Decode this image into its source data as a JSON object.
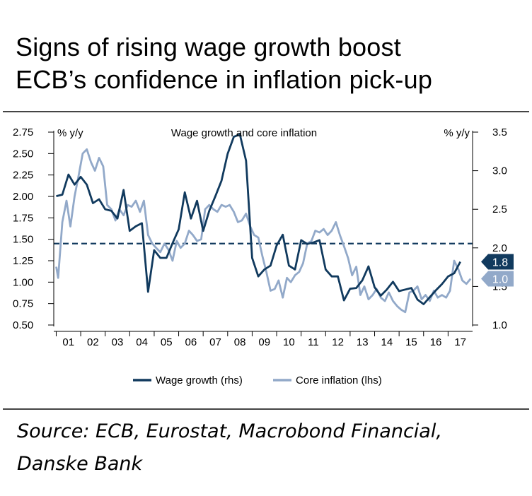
{
  "title_lines": [
    "Signs of rising wage growth boost",
    "ECB’s confidence in inflation pick-up"
  ],
  "source_lines": [
    "Source: ECB, Eurostat, Macrobond Financial,",
    "Danske Bank"
  ],
  "colors": {
    "wage": "#113a5e",
    "core": "#92a9c9",
    "dashed": "#113a5e",
    "axis": "#000000"
  },
  "chart_data": {
    "type": "line",
    "title": "Wage growth and core inflation",
    "left_unit": "% y/y",
    "right_unit": "% y/y",
    "left_axis": {
      "ylim": [
        0.5,
        2.75
      ],
      "ticks": [
        "0.50",
        "0.75",
        "1.00",
        "1.25",
        "1.50",
        "1.75",
        "2.00",
        "2.25",
        "2.50",
        "2.75"
      ]
    },
    "right_axis": {
      "ylim": [
        1.0,
        3.5
      ],
      "ticks": [
        "1.0",
        "1.5",
        "2.0",
        "2.5",
        "3.0",
        "3.5"
      ]
    },
    "x_labels": [
      "01",
      "02",
      "03",
      "04",
      "05",
      "06",
      "07",
      "08",
      "09",
      "10",
      "11",
      "12",
      "13",
      "14",
      "15",
      "16",
      "17"
    ],
    "xlim": [
      2000.9,
      2018.0
    ],
    "reference_line": {
      "axis": "left",
      "value": 1.45,
      "style": "dashed"
    },
    "legend": [
      "Wage growth (rhs)",
      "Core inflation (lhs)"
    ],
    "end_labels": {
      "wage": "1.8",
      "core": "1.0"
    },
    "series": [
      {
        "name": "Wage growth (rhs)",
        "axis": "right",
        "x": [
          2001.0,
          2001.25,
          2001.5,
          2001.75,
          2002.0,
          2002.25,
          2002.5,
          2002.75,
          2003.0,
          2003.25,
          2003.5,
          2003.75,
          2004.0,
          2004.25,
          2004.5,
          2004.75,
          2005.0,
          2005.25,
          2005.5,
          2005.75,
          2006.0,
          2006.25,
          2006.5,
          2006.75,
          2007.0,
          2007.25,
          2007.5,
          2007.75,
          2008.0,
          2008.25,
          2008.5,
          2008.75,
          2009.0,
          2009.25,
          2009.5,
          2009.75,
          2010.0,
          2010.25,
          2010.5,
          2010.75,
          2011.0,
          2011.25,
          2011.5,
          2011.75,
          2012.0,
          2012.25,
          2012.5,
          2012.75,
          2013.0,
          2013.25,
          2013.5,
          2013.75,
          2014.0,
          2014.25,
          2014.5,
          2014.75,
          2015.0,
          2015.25,
          2015.5,
          2015.75,
          2016.0,
          2016.25,
          2016.5,
          2016.75,
          2017.0,
          2017.25,
          2017.5
        ],
        "values": [
          2.67,
          2.69,
          2.95,
          2.82,
          2.92,
          2.82,
          2.58,
          2.63,
          2.5,
          2.48,
          2.38,
          2.75,
          2.22,
          2.28,
          2.32,
          1.43,
          1.97,
          1.87,
          1.87,
          2.06,
          2.24,
          2.72,
          2.38,
          2.61,
          2.22,
          2.48,
          2.67,
          2.87,
          3.22,
          3.44,
          3.47,
          3.13,
          1.87,
          1.63,
          1.72,
          1.77,
          2.03,
          2.17,
          1.77,
          1.72,
          2.1,
          2.05,
          2.07,
          2.1,
          1.72,
          1.63,
          1.63,
          1.32,
          1.47,
          1.48,
          1.58,
          1.76,
          1.49,
          1.38,
          1.46,
          1.56,
          1.44,
          1.46,
          1.48,
          1.33,
          1.27,
          1.36,
          1.45,
          1.53,
          1.63,
          1.67,
          1.82
        ]
      },
      {
        "name": "Core inflation (lhs)",
        "axis": "left",
        "x": [
          2001.0,
          2001.08,
          2001.25,
          2001.42,
          2001.58,
          2001.75,
          2001.92,
          2002.08,
          2002.25,
          2002.42,
          2002.58,
          2002.75,
          2002.92,
          2003.08,
          2003.25,
          2003.42,
          2003.58,
          2003.75,
          2003.92,
          2004.08,
          2004.25,
          2004.42,
          2004.58,
          2004.75,
          2004.92,
          2005.08,
          2005.25,
          2005.42,
          2005.58,
          2005.75,
          2005.92,
          2006.08,
          2006.25,
          2006.42,
          2006.58,
          2006.75,
          2006.92,
          2007.08,
          2007.25,
          2007.42,
          2007.58,
          2007.75,
          2007.92,
          2008.08,
          2008.25,
          2008.42,
          2008.58,
          2008.75,
          2008.92,
          2009.08,
          2009.25,
          2009.42,
          2009.58,
          2009.75,
          2009.92,
          2010.08,
          2010.25,
          2010.42,
          2010.58,
          2010.75,
          2010.92,
          2011.08,
          2011.25,
          2011.42,
          2011.58,
          2011.75,
          2011.92,
          2012.08,
          2012.25,
          2012.42,
          2012.58,
          2012.75,
          2012.92,
          2013.08,
          2013.25,
          2013.42,
          2013.58,
          2013.75,
          2013.92,
          2014.08,
          2014.25,
          2014.42,
          2014.58,
          2014.75,
          2014.92,
          2015.08,
          2015.25,
          2015.42,
          2015.58,
          2015.75,
          2015.92,
          2016.08,
          2016.25,
          2016.42,
          2016.58,
          2016.75,
          2016.92,
          2017.08,
          2017.25,
          2017.42,
          2017.58,
          2017.75,
          2017.92
        ],
        "values": [
          1.18,
          1.05,
          1.7,
          1.95,
          1.65,
          2.0,
          2.25,
          2.5,
          2.55,
          2.4,
          2.3,
          2.45,
          2.35,
          1.9,
          1.85,
          1.72,
          1.85,
          1.78,
          1.9,
          1.88,
          1.95,
          1.82,
          1.95,
          1.55,
          1.45,
          1.4,
          1.35,
          1.45,
          1.38,
          1.25,
          1.48,
          1.4,
          1.45,
          1.6,
          1.55,
          1.48,
          1.5,
          1.85,
          1.9,
          1.85,
          1.82,
          1.9,
          1.88,
          1.9,
          1.82,
          1.7,
          1.72,
          1.8,
          1.65,
          1.55,
          1.52,
          1.3,
          1.12,
          0.9,
          0.92,
          1.02,
          0.82,
          1.05,
          1.0,
          1.08,
          1.12,
          1.22,
          1.45,
          1.48,
          1.6,
          1.58,
          1.62,
          1.55,
          1.6,
          1.7,
          1.55,
          1.42,
          1.28,
          1.08,
          1.18,
          0.85,
          0.95,
          0.8,
          0.85,
          0.92,
          0.82,
          0.78,
          0.88,
          0.78,
          0.72,
          0.68,
          0.65,
          0.88,
          0.9,
          0.95,
          0.8,
          0.85,
          0.78,
          0.9,
          0.82,
          0.85,
          0.82,
          0.9,
          1.25,
          1.15,
          1.02,
          0.98,
          1.04
        ]
      }
    ]
  }
}
